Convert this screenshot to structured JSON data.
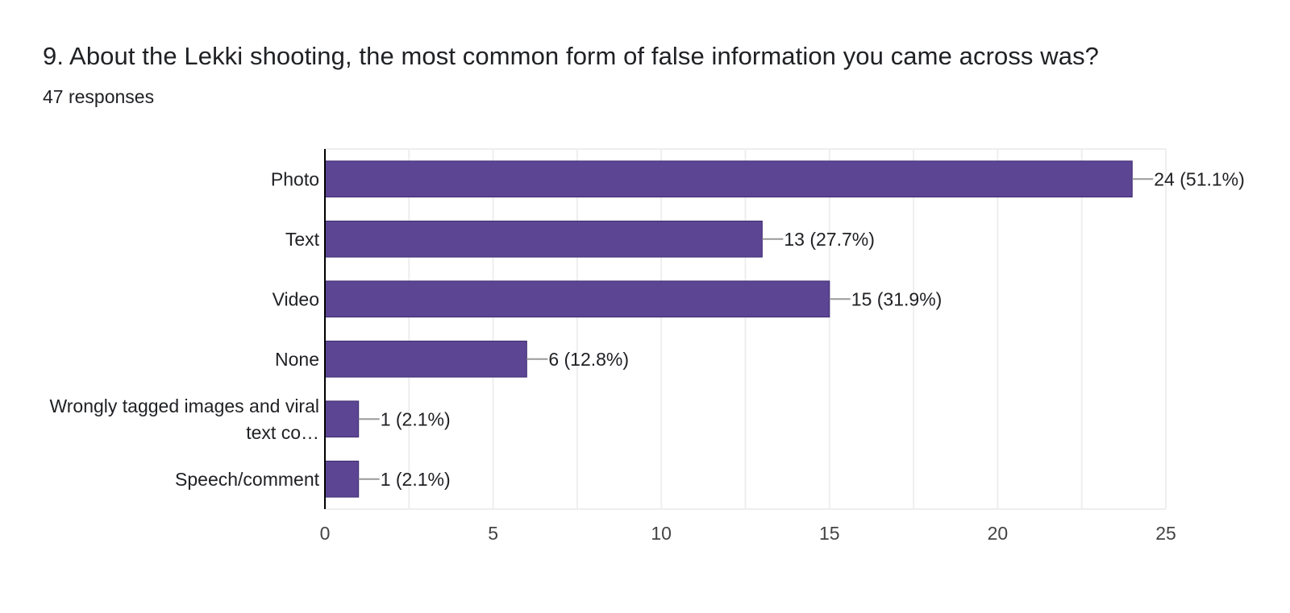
{
  "question": {
    "title": "9. About the Lekki shooting, the most common form of false information you came across was?",
    "responses": "47 responses"
  },
  "colors": {
    "bar_fill": "#5c4593",
    "bar_stroke": "#3d2a70",
    "grid": "#eeeeee",
    "axis": "#000000",
    "leader": "#999999",
    "text": "#202124",
    "tick_text": "#444444"
  },
  "chart_data": {
    "type": "bar",
    "orientation": "horizontal",
    "categories": [
      "Photo",
      "Text",
      "Video",
      "None",
      "Wrongly tagged images and viral text co…",
      "Speech/comment"
    ],
    "category_label_lines": [
      [
        "Photo"
      ],
      [
        "Text"
      ],
      [
        "Video"
      ],
      [
        "None"
      ],
      [
        "Wrongly tagged images and viral",
        "text co…"
      ],
      [
        "Speech/comment"
      ]
    ],
    "values": [
      24,
      13,
      15,
      6,
      1,
      1
    ],
    "data_labels": [
      "24 (51.1%)",
      "13 (27.7%)",
      "15 (31.9%)",
      "6 (12.8%)",
      "1 (2.1%)",
      "1 (2.1%)"
    ],
    "xlim": [
      0,
      25
    ],
    "xticks": [
      0,
      5,
      10,
      15,
      20,
      25
    ],
    "xlabel": "",
    "ylabel": "",
    "grid": true,
    "legend": "none"
  }
}
